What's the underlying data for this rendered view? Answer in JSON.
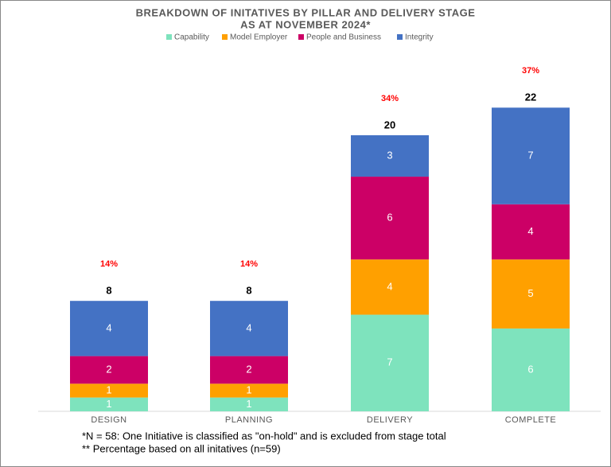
{
  "chart_data": {
    "type": "stacked-bar",
    "title": "BREAKDOWN OF INITATIVES BY PILLAR AND DELIVERY STAGE",
    "subtitle": "AS AT NOVEMBER 2024*",
    "categories": [
      "DESIGN",
      "PLANNING",
      "DELIVERY",
      "COMPLETE"
    ],
    "series": [
      {
        "name": "Capability",
        "color": "#7ee3bd",
        "values": [
          1,
          1,
          7,
          6
        ]
      },
      {
        "name": "Model Employer",
        "color": "#ffa000",
        "values": [
          1,
          1,
          4,
          5
        ]
      },
      {
        "name": "People and Business",
        "color": "#cc0066",
        "values": [
          2,
          2,
          6,
          4
        ]
      },
      {
        "name": "Integrity",
        "color": "#4472c4",
        "values": [
          4,
          4,
          3,
          7
        ]
      }
    ],
    "totals": [
      8,
      8,
      20,
      22
    ],
    "percentages": {
      "values": [
        14,
        14,
        34,
        37
      ],
      "value_labels": [
        "14%",
        "14%",
        "34%",
        "37%"
      ]
    },
    "notes": [
      "*N = 58: One Initiative is classified as \"on-hold\" and is excluded from stage total",
      "** Percentage based on all initatives (n=59)"
    ]
  }
}
